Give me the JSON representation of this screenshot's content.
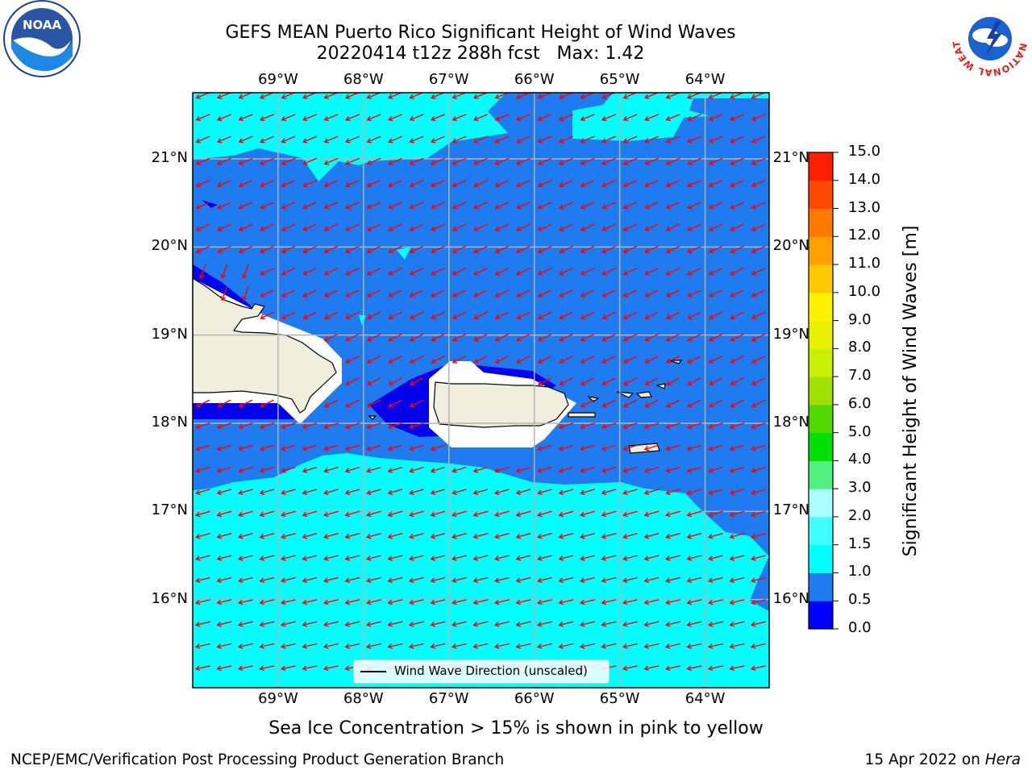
{
  "title": {
    "line1": "GEFS MEAN Puerto Rico Significant Height of Wind Waves",
    "line2": "20220414 t12z 288h fcst   Max: 1.42"
  },
  "subtitle": "Sea Ice Concentration > 15% is shown in pink to yellow",
  "footer": {
    "left": "NCEP/EMC/Verification Post Processing Product Generation Branch",
    "right_date": "15 Apr 2022 on ",
    "right_host": "Hera"
  },
  "logos": {
    "noaa": "NOAA",
    "nws_ring": "NATIONAL WEATHER SERVICE"
  },
  "map": {
    "lon_min": -70.0,
    "lon_max": -63.25,
    "lat_min": 15.0,
    "lat_max": 21.75,
    "lon_ticks": [
      {
        "value": -69,
        "label": "69°W"
      },
      {
        "value": -68,
        "label": "68°W"
      },
      {
        "value": -67,
        "label": "67°W"
      },
      {
        "value": -66,
        "label": "66°W"
      },
      {
        "value": -65,
        "label": "65°W"
      },
      {
        "value": -64,
        "label": "64°W"
      }
    ],
    "lat_ticks": [
      {
        "value": 21,
        "label": "21°N"
      },
      {
        "value": 20,
        "label": "20°N"
      },
      {
        "value": 19,
        "label": "19°N"
      },
      {
        "value": 18,
        "label": "18°N"
      },
      {
        "value": 17,
        "label": "17°N"
      },
      {
        "value": 16,
        "label": "16°N"
      }
    ],
    "colors": {
      "ocean_0_5_1_0": "#1E7BF0",
      "ocean_1_0_1_5": "#00FFFF",
      "ocean_0_0_0_5": "#0000EE",
      "land": "#F0EEDC",
      "arrows": "#FF0000",
      "grid": "#B4B4B4"
    },
    "legend_label": "Wind Wave Direction (unscaled)"
  },
  "colorbar": {
    "label": "Significant Height of Wind Waves [m]",
    "min": 0.0,
    "max": 15.0,
    "levels": [
      0.0,
      0.5,
      1.0,
      1.5,
      2.0,
      3.0,
      4.0,
      5.0,
      6.0,
      7.0,
      8.0,
      9.0,
      10.0,
      11.0,
      12.0,
      13.0,
      14.0,
      15.0
    ],
    "tick_labels": [
      "0.0",
      "0.5",
      "1.0",
      "1.5",
      "2.0",
      "3.0",
      "4.0",
      "5.0",
      "6.0",
      "7.0",
      "8.0",
      "9.0",
      "10.0",
      "11.0",
      "12.0",
      "13.0",
      "14.0",
      "15.0"
    ],
    "colors": [
      "#0000FF",
      "#1E7BF0",
      "#00FFFF",
      "#40FFFF",
      "#AAFFFF",
      "#50F080",
      "#00E000",
      "#50D800",
      "#A0E000",
      "#C8F000",
      "#E6F000",
      "#FFF000",
      "#FFC800",
      "#FFA000",
      "#FF7800",
      "#FF4800",
      "#FF1E00"
    ]
  }
}
